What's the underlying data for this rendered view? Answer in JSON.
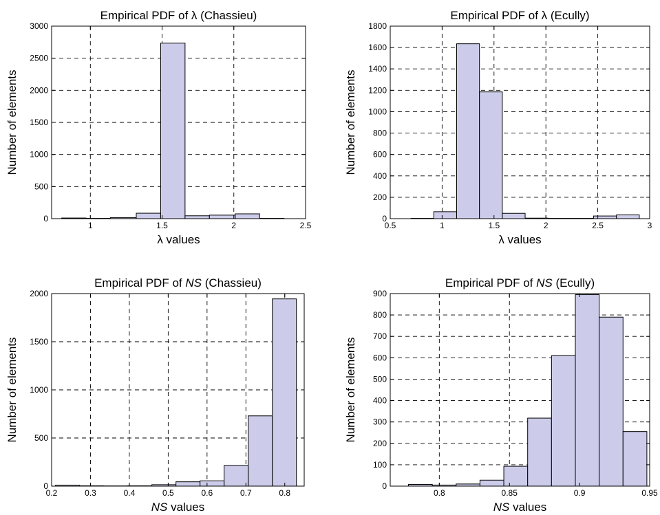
{
  "chart_data": [
    {
      "type": "bar",
      "title": "Empirical PDF of λ (Chassieu)",
      "title_parts": [
        {
          "t": "Empirical PDF of λ (Chassieu)",
          "i": false
        }
      ],
      "xlabel": "λ values",
      "xlabel_parts": [
        {
          "t": "λ values",
          "i": false
        }
      ],
      "ylabel": "Number of elements",
      "xlim": [
        0.73,
        2.5
      ],
      "ylim": [
        0,
        3000
      ],
      "xticks": [
        1,
        1.5,
        2,
        2.5
      ],
      "xtick_labels": [
        "1",
        "1.5",
        "2",
        "2.5"
      ],
      "yticks": [
        0,
        500,
        1000,
        1500,
        2000,
        2500,
        3000
      ],
      "ytick_labels": [
        "0",
        "500",
        "1000",
        "1500",
        "2000",
        "2500",
        "3000"
      ],
      "grid": true,
      "bins": [
        {
          "x0": 0.8,
          "x1": 0.97,
          "value": 10
        },
        {
          "x0": 0.97,
          "x1": 1.14,
          "value": 5
        },
        {
          "x0": 1.14,
          "x1": 1.32,
          "value": 15
        },
        {
          "x0": 1.32,
          "x1": 1.49,
          "value": 85
        },
        {
          "x0": 1.49,
          "x1": 1.66,
          "value": 2735
        },
        {
          "x0": 1.66,
          "x1": 1.83,
          "value": 45
        },
        {
          "x0": 1.83,
          "x1": 2.01,
          "value": 55
        },
        {
          "x0": 2.01,
          "x1": 2.18,
          "value": 75
        },
        {
          "x0": 2.18,
          "x1": 2.35,
          "value": 5
        }
      ]
    },
    {
      "type": "bar",
      "title": "Empirical PDF of λ (Ecully)",
      "title_parts": [
        {
          "t": "Empirical PDF of λ (Ecully)",
          "i": false
        }
      ],
      "xlabel": "λ values",
      "xlabel_parts": [
        {
          "t": "λ values",
          "i": false
        }
      ],
      "ylabel": "Number of elements",
      "xlim": [
        0.5,
        3
      ],
      "ylim": [
        0,
        1800
      ],
      "xticks": [
        0.5,
        1,
        1.5,
        2,
        2.5,
        3
      ],
      "xtick_labels": [
        "0.5",
        "1",
        "1.5",
        "2",
        "2.5",
        "3"
      ],
      "yticks": [
        0,
        200,
        400,
        600,
        800,
        1000,
        1200,
        1400,
        1600,
        1800
      ],
      "ytick_labels": [
        "0",
        "200",
        "400",
        "600",
        "800",
        "1000",
        "1200",
        "1400",
        "1600",
        "1800"
      ],
      "grid": true,
      "bins": [
        {
          "x0": 0.7,
          "x1": 0.92,
          "value": 3
        },
        {
          "x0": 0.92,
          "x1": 1.14,
          "value": 65
        },
        {
          "x0": 1.14,
          "x1": 1.36,
          "value": 1635
        },
        {
          "x0": 1.36,
          "x1": 1.58,
          "value": 1185
        },
        {
          "x0": 1.58,
          "x1": 1.8,
          "value": 50
        },
        {
          "x0": 1.8,
          "x1": 2.02,
          "value": 5
        },
        {
          "x0": 2.02,
          "x1": 2.24,
          "value": 3
        },
        {
          "x0": 2.24,
          "x1": 2.46,
          "value": 3
        },
        {
          "x0": 2.46,
          "x1": 2.68,
          "value": 25
        },
        {
          "x0": 2.68,
          "x1": 2.9,
          "value": 35
        }
      ]
    },
    {
      "type": "bar",
      "title": "Empirical PDF of NS (Chassieu)",
      "title_parts": [
        {
          "t": "Empirical PDF of ",
          "i": false
        },
        {
          "t": "NS",
          "i": true
        },
        {
          "t": " (Chassieu)",
          "i": false
        }
      ],
      "xlabel": "NS values",
      "xlabel_parts": [
        {
          "t": "NS",
          "i": true
        },
        {
          "t": " values",
          "i": false
        }
      ],
      "ylabel": "Number of elements",
      "xlim": [
        0.2,
        0.85
      ],
      "ylim": [
        0,
        2000
      ],
      "xticks": [
        0.2,
        0.3,
        0.4,
        0.5,
        0.6,
        0.7,
        0.8
      ],
      "xtick_labels": [
        "0.2",
        "0.3",
        "0.4",
        "0.5",
        "0.6",
        "0.7",
        "0.8"
      ],
      "yticks": [
        0,
        500,
        1000,
        1500,
        2000
      ],
      "ytick_labels": [
        "0",
        "500",
        "1000",
        "1500",
        "2000"
      ],
      "grid": true,
      "bins": [
        {
          "x0": 0.21,
          "x1": 0.272,
          "value": 10
        },
        {
          "x0": 0.272,
          "x1": 0.334,
          "value": 3
        },
        {
          "x0": 0.334,
          "x1": 0.396,
          "value": 2
        },
        {
          "x0": 0.396,
          "x1": 0.458,
          "value": 3
        },
        {
          "x0": 0.458,
          "x1": 0.52,
          "value": 15
        },
        {
          "x0": 0.52,
          "x1": 0.582,
          "value": 45
        },
        {
          "x0": 0.582,
          "x1": 0.644,
          "value": 55
        },
        {
          "x0": 0.644,
          "x1": 0.706,
          "value": 215
        },
        {
          "x0": 0.706,
          "x1": 0.768,
          "value": 730
        },
        {
          "x0": 0.768,
          "x1": 0.83,
          "value": 1945
        }
      ]
    },
    {
      "type": "bar",
      "title": "Empirical PDF of NS (Ecully)",
      "title_parts": [
        {
          "t": "Empirical PDF of ",
          "i": false
        },
        {
          "t": "NS",
          "i": true
        },
        {
          "t": " (Ecully)",
          "i": false
        }
      ],
      "xlabel": "NS values",
      "xlabel_parts": [
        {
          "t": "NS",
          "i": true
        },
        {
          "t": " values",
          "i": false
        }
      ],
      "ylabel": "Number of elements",
      "xlim": [
        0.765,
        0.95
      ],
      "ylim": [
        0,
        900
      ],
      "xticks": [
        0.8,
        0.85,
        0.9,
        0.95
      ],
      "xtick_labels": [
        "0.8",
        "0.85",
        "0.9",
        "0.95"
      ],
      "yticks": [
        0,
        100,
        200,
        300,
        400,
        500,
        600,
        700,
        800,
        900
      ],
      "ytick_labels": [
        "0",
        "100",
        "200",
        "300",
        "400",
        "500",
        "600",
        "700",
        "800",
        "900"
      ],
      "grid": true,
      "bins": [
        {
          "x0": 0.778,
          "x1": 0.795,
          "value": 8
        },
        {
          "x0": 0.795,
          "x1": 0.812,
          "value": 5
        },
        {
          "x0": 0.812,
          "x1": 0.829,
          "value": 10
        },
        {
          "x0": 0.829,
          "x1": 0.846,
          "value": 28
        },
        {
          "x0": 0.846,
          "x1": 0.863,
          "value": 93
        },
        {
          "x0": 0.863,
          "x1": 0.88,
          "value": 318
        },
        {
          "x0": 0.88,
          "x1": 0.897,
          "value": 610
        },
        {
          "x0": 0.897,
          "x1": 0.914,
          "value": 895
        },
        {
          "x0": 0.914,
          "x1": 0.931,
          "value": 790
        },
        {
          "x0": 0.931,
          "x1": 0.948,
          "value": 255
        }
      ]
    }
  ],
  "colors": {
    "bar_fill": "#ccccea",
    "bar_stroke": "#000000",
    "grid": "#000000",
    "axes": "#000000"
  }
}
